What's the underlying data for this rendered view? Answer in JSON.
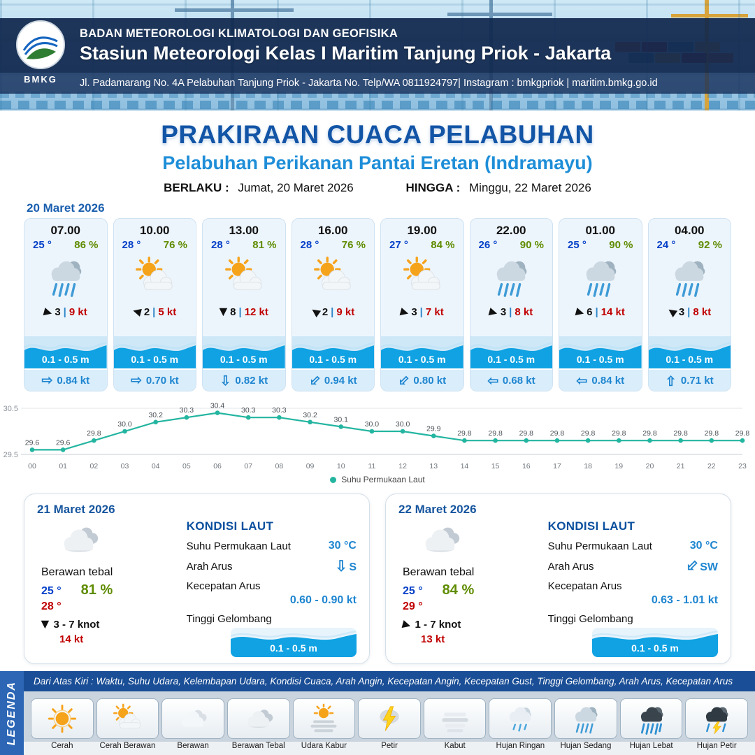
{
  "header": {
    "logo": "BMKG",
    "agency": "BADAN METEOROLOGI KLIMATOLOGI DAN GEOFISIKA",
    "station": "Stasiun Meteorologi Kelas I Maritim Tanjung Priok - Jakarta",
    "address": "Jl. Padamarang No. 4A Pelabuhan Tanjung Priok - Jakarta No. Telp/WA 0811924797| Instagram : bmkgpriok | maritim.bmkg.go.id"
  },
  "title": {
    "main": "PRAKIRAAN CUACA PELABUHAN",
    "subtitle": "Pelabuhan Perikanan Pantai Eretan (Indramayu)",
    "valid_label": "BERLAKU :",
    "valid_value": "Jumat, 20 Maret 2026",
    "until_label": "HINGGA :",
    "until_value": "Minggu, 22 Maret 2026"
  },
  "hourly": {
    "date": "20 Maret 2026",
    "sep": "|",
    "cards": [
      {
        "time": "07.00",
        "temp": "25 °",
        "humidity": "86 %",
        "icon": "hujan-sedang",
        "wind_rot": 15,
        "wind_speed": "3",
        "gust": "9 kt",
        "wave": "0.1 - 0.5 m",
        "cur_rot": 0,
        "cur": "0.84 kt"
      },
      {
        "time": "10.00",
        "temp": "28 °",
        "humidity": "76 %",
        "icon": "cerah-berawan",
        "wind_rot": 195,
        "wind_speed": "2",
        "gust": "5 kt",
        "wave": "0.1 - 0.5 m",
        "cur_rot": 0,
        "cur": "0.70 kt"
      },
      {
        "time": "13.00",
        "temp": "28 °",
        "humidity": "81 %",
        "icon": "cerah-berawan",
        "wind_rot": 90,
        "wind_speed": "8",
        "gust": "12 kt",
        "wave": "0.1 - 0.5 m",
        "cur_rot": 90,
        "cur": "0.82 kt"
      },
      {
        "time": "16.00",
        "temp": "28 °",
        "humidity": "76 %",
        "icon": "cerah-berawan",
        "wind_rot": 215,
        "wind_speed": "2",
        "gust": "9 kt",
        "wave": "0.1 - 0.5 m",
        "cur_rot": 135,
        "cur": "0.94 kt"
      },
      {
        "time": "19.00",
        "temp": "27 °",
        "humidity": "84 %",
        "icon": "cerah-berawan",
        "wind_rot": 15,
        "wind_speed": "3",
        "gust": "7 kt",
        "wave": "0.1 - 0.5 m",
        "cur_rot": 135,
        "cur": "0.80 kt"
      },
      {
        "time": "22.00",
        "temp": "26 °",
        "humidity": "90 %",
        "icon": "hujan-sedang",
        "wind_rot": 15,
        "wind_speed": "3",
        "gust": "8 kt",
        "wave": "0.1 - 0.5 m",
        "cur_rot": 180,
        "cur": "0.68 kt"
      },
      {
        "time": "01.00",
        "temp": "25 °",
        "humidity": "90 %",
        "icon": "hujan-sedang",
        "wind_rot": 15,
        "wind_speed": "6",
        "gust": "14 kt",
        "wave": "0.1 - 0.5 m",
        "cur_rot": 180,
        "cur": "0.84 kt"
      },
      {
        "time": "04.00",
        "temp": "24 °",
        "humidity": "92 %",
        "icon": "hujan-sedang",
        "wind_rot": 215,
        "wind_speed": "3",
        "gust": "8 kt",
        "wave": "0.1 - 0.5 m",
        "cur_rot": 270,
        "cur": "0.71 kt"
      }
    ]
  },
  "chart_data": {
    "type": "line",
    "series_label": "Suhu Permukaan Laut",
    "x": [
      "00",
      "01",
      "02",
      "03",
      "04",
      "05",
      "06",
      "07",
      "08",
      "09",
      "10",
      "11",
      "12",
      "13",
      "14",
      "15",
      "16",
      "17",
      "18",
      "19",
      "20",
      "21",
      "22",
      "23"
    ],
    "values": [
      29.6,
      29.6,
      29.8,
      30.0,
      30.2,
      30.3,
      30.4,
      30.3,
      30.3,
      30.2,
      30.1,
      30.0,
      30.0,
      29.9,
      29.8,
      29.8,
      29.8,
      29.8,
      29.8,
      29.8,
      29.8,
      29.8,
      29.8,
      29.8
    ],
    "ylim": [
      29.5,
      30.5
    ],
    "color": "#23b5a0",
    "legend_position": "bottom",
    "grid": false
  },
  "daily": [
    {
      "date": "21 Maret 2026",
      "icon": "berawan-tebal",
      "condition": "Berawan tebal",
      "temp_min": "25 °",
      "humidity": "81 %",
      "temp_max": "28 °",
      "wind_rot": 90,
      "wind": "3 - 7 knot",
      "gust": "14 kt",
      "sea": {
        "title": "KONDISI LAUT",
        "sst_label": "Suhu Permukaan Laut",
        "sst": "30 °C",
        "dir_label": "Arah Arus",
        "dir": "S",
        "dir_rot": 90,
        "speed_label": "Kecepatan Arus",
        "speed": "0.60 - 0.90 kt",
        "wave_label": "Tinggi Gelombang",
        "wave": "0.1 - 0.5 m"
      }
    },
    {
      "date": "22 Maret 2026",
      "icon": "berawan-tebal",
      "condition": "Berawan tebal",
      "temp_min": "25 °",
      "humidity": "84 %",
      "temp_max": "29 °",
      "wind_rot": 15,
      "wind": "1 - 7 knot",
      "gust": "13 kt",
      "sea": {
        "title": "KONDISI LAUT",
        "sst_label": "Suhu Permukaan Laut",
        "sst": "30 °C",
        "dir_label": "Arah Arus",
        "dir": "SW",
        "dir_rot": 135,
        "speed_label": "Kecepatan Arus",
        "speed": "0.63 - 1.01 kt",
        "wave_label": "Tinggi Gelombang",
        "wave": "0.1 - 0.5 m"
      }
    }
  ],
  "legend": {
    "tab": "LEGENDA",
    "description": "Dari Atas Kiri : Waktu, Suhu Udara, Kelembapan Udara, Kondisi Cuaca, Arah Angin, Kecepatan Angin, Kecepatan Gust, Tinggi Gelombang, Arah Arus, Kecepatan Arus",
    "items": [
      {
        "label": "Cerah",
        "icon": "cerah"
      },
      {
        "label": "Cerah Berawan",
        "icon": "cerah-berawan"
      },
      {
        "label": "Berawan",
        "icon": "berawan"
      },
      {
        "label": "Berawan Tebal",
        "icon": "berawan-tebal"
      },
      {
        "label": "Udara Kabur",
        "icon": "udara-kabur"
      },
      {
        "label": "Petir",
        "icon": "petir"
      },
      {
        "label": "Kabut",
        "icon": "kabut"
      },
      {
        "label": "Hujan Ringan",
        "icon": "hujan-ringan"
      },
      {
        "label": "Hujan Sedang",
        "icon": "hujan-sedang"
      },
      {
        "label": "Hujan Lebat",
        "icon": "hujan-lebat"
      },
      {
        "label": "Hujan Petir",
        "icon": "hujan-petir"
      }
    ]
  },
  "colors": {
    "accent_blue": "#1254a6",
    "subtitle_blue": "#1e8ed8",
    "value_blue": "#1f86d0",
    "temp_blue": "#0540c8",
    "humidity_green": "#5f8c00",
    "gust_red": "#c00000",
    "wave_blue": "#10a2e2",
    "chart_teal": "#23b5a0",
    "header_navy": "#0f264c"
  }
}
